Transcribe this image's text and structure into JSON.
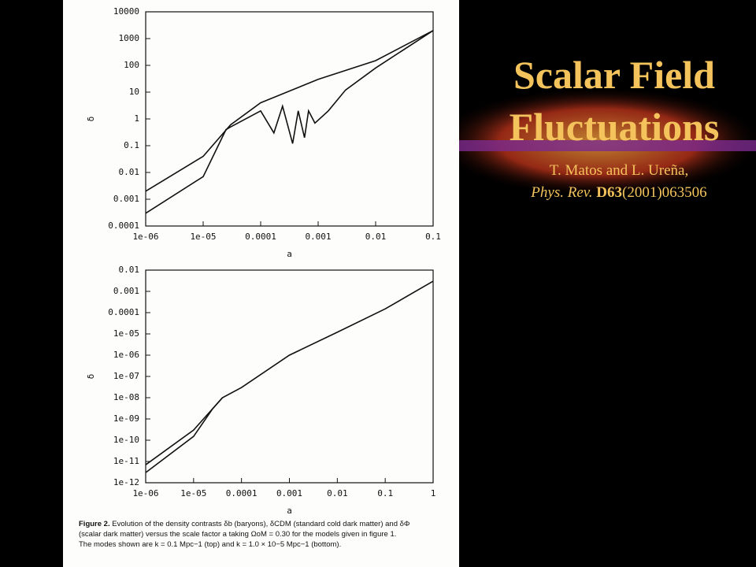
{
  "slide": {
    "title_lines": [
      "Scalar Field",
      "Fluctuations"
    ],
    "authors": "T. Matos and L. Ureña,",
    "journal": "Phys. Rev.",
    "volume": "D63",
    "reference": "(2001)063506",
    "caption": {
      "label": "Figure 2.",
      "lines": [
        "Evolution of the density contrasts δb (baryons), δCDM (standard cold dark matter) and δΦ",
        "(scalar dark matter) versus the scale factor a taking ΩoM = 0.30 for the models given in figure 1.",
        "The modes shown are k = 0.1 Mpc−1 (top) and k = 1.0 × 10−5 Mpc−1 (bottom)."
      ]
    }
  },
  "chart_data": [
    {
      "type": "line",
      "log_x": true,
      "log_y": true,
      "xlabel": "a",
      "ylabel": "δ",
      "xlim": [
        1e-06,
        0.1
      ],
      "ylim": [
        0.0001,
        10000
      ],
      "xticks": [
        {
          "value": 1e-06,
          "label": "1e-06"
        },
        {
          "value": 1e-05,
          "label": "1e-05"
        },
        0.0001,
        0.001,
        0.01,
        0.1
      ],
      "yticks": [
        10000,
        1000,
        100,
        10,
        1,
        0.1,
        0.01,
        0.001,
        0.0001
      ],
      "series": [
        {
          "color": "#111111",
          "x": [
            1e-06,
            1e-05,
            3e-05,
            0.0001,
            0.001,
            0.01,
            0.1
          ],
          "values": [
            0.002,
            0.04,
            0.6,
            4,
            30,
            150,
            2000
          ]
        },
        {
          "color": "#111111",
          "x": [
            1e-06,
            1e-05,
            2.5e-05,
            3e-05,
            0.0001,
            0.00017,
            0.00024,
            0.00036,
            0.00045,
            0.00058,
            0.00068,
            0.00088,
            0.0015,
            0.003,
            0.01,
            0.1
          ],
          "values": [
            0.0003,
            0.007,
            0.4,
            0.5,
            2,
            0.3,
            3,
            0.12,
            2,
            0.2,
            2,
            0.7,
            2,
            12,
            80,
            2000
          ]
        }
      ]
    },
    {
      "type": "line",
      "log_x": true,
      "log_y": true,
      "xlabel": "a",
      "ylabel": "δ",
      "xlim": [
        1e-06,
        1
      ],
      "ylim": [
        1e-12,
        0.01
      ],
      "xticks": [
        {
          "value": 1e-06,
          "label": "1e-06"
        },
        {
          "value": 1e-05,
          "label": "1e-05"
        },
        0.0001,
        0.001,
        0.01,
        0.1,
        1
      ],
      "yticks": [
        0.01,
        0.001,
        0.0001,
        {
          "value": 1e-05,
          "label": "1e-05"
        },
        {
          "value": 1e-06,
          "label": "1e-06"
        },
        {
          "value": 1e-07,
          "label": "1e-07"
        },
        {
          "value": 1e-08,
          "label": "1e-08"
        },
        {
          "value": 1e-09,
          "label": "1e-09"
        },
        {
          "value": 1e-10,
          "label": "1e-10"
        },
        {
          "value": 1e-11,
          "label": "1e-11"
        },
        {
          "value": 1e-12,
          "label": "1e-12"
        }
      ],
      "series": [
        {
          "color": "#111111",
          "x": [
            1e-06,
            1e-05,
            4e-05,
            0.0001,
            0.001,
            0.01,
            0.1,
            1
          ],
          "values": [
            7e-12,
            3e-10,
            1e-08,
            3e-08,
            1e-06,
            1.2e-05,
            0.00015,
            0.003
          ]
        },
        {
          "color": "#111111",
          "x": [
            1e-06,
            1e-05,
            2.5e-05,
            4e-05
          ],
          "values": [
            3e-12,
            1.5e-10,
            3e-09,
            1e-08
          ]
        }
      ]
    }
  ]
}
